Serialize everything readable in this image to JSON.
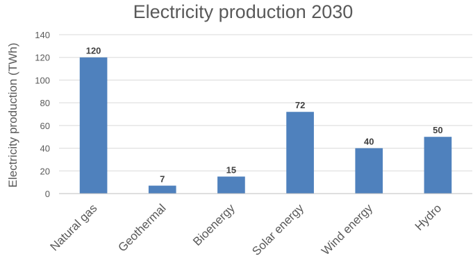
{
  "chart_data": {
    "type": "bar",
    "title": "Electricity production 2030",
    "xlabel": "",
    "ylabel": "Electricity production (TWh)",
    "categories": [
      "Natural gas",
      "Geothermal",
      "Bioenergy",
      "Solar energy",
      "Wind energy",
      "Hydro"
    ],
    "values": [
      120,
      7,
      15,
      72,
      40,
      50
    ],
    "ylim": [
      0,
      140
    ],
    "yticks": [
      "0",
      "20",
      "40",
      "60",
      "80",
      "100",
      "120",
      "140"
    ],
    "data_labels": [
      "120",
      "7",
      "15",
      "72",
      "40",
      "50"
    ],
    "grid": true,
    "legend": "none",
    "bar_color": "#4f81bd"
  }
}
